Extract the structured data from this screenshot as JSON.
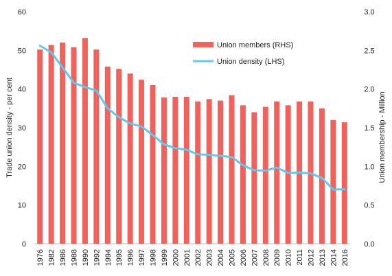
{
  "chart_data": {
    "type": "bar",
    "categories": [
      "1976",
      "1982",
      "1986",
      "1988",
      "1990",
      "1992",
      "1994",
      "1995",
      "1996",
      "1997",
      "1998",
      "1999",
      "2000",
      "2001",
      "2002",
      "2003",
      "2004",
      "2005",
      "2006",
      "2007",
      "2008",
      "2009",
      "2010",
      "2011",
      "2012",
      "2013",
      "2014",
      "2016"
    ],
    "series": [
      {
        "name": "Union members (RHS)",
        "kind": "bar",
        "axis": "right",
        "color": "#f0625b",
        "values": [
          2.51,
          2.57,
          2.6,
          2.54,
          2.66,
          2.51,
          2.29,
          2.26,
          2.2,
          2.12,
          2.05,
          1.89,
          1.9,
          1.9,
          1.84,
          1.87,
          1.85,
          1.92,
          1.79,
          1.7,
          1.77,
          1.84,
          1.79,
          1.84,
          1.84,
          1.75,
          1.6,
          1.57
        ]
      },
      {
        "name": "Union density (LHS)",
        "kind": "line",
        "axis": "left",
        "color": "#61c8ee",
        "values": [
          51.2,
          49.5,
          45.6,
          41.6,
          40.5,
          39.6,
          35.0,
          32.7,
          31.1,
          30.3,
          28.1,
          25.7,
          24.7,
          24.3,
          23.1,
          23.0,
          22.7,
          22.4,
          20.3,
          19.0,
          18.9,
          19.7,
          18.3,
          18.4,
          18.2,
          17.0,
          14.0,
          14.1
        ]
      }
    ],
    "xlabel": "",
    "ylabel": "Trade union density - per cent",
    "y2label": "Union membership - Million",
    "ylim": [
      0,
      60
    ],
    "yticks": [
      "0",
      "10",
      "20",
      "30",
      "40",
      "50",
      "60"
    ],
    "y2lim": [
      0,
      3
    ],
    "y2ticks": [
      "0.0",
      "0.5",
      "1.0",
      "1.5",
      "2.0",
      "2.5",
      "3.0"
    ],
    "legend_position": "top-right-inside",
    "grid": false
  }
}
